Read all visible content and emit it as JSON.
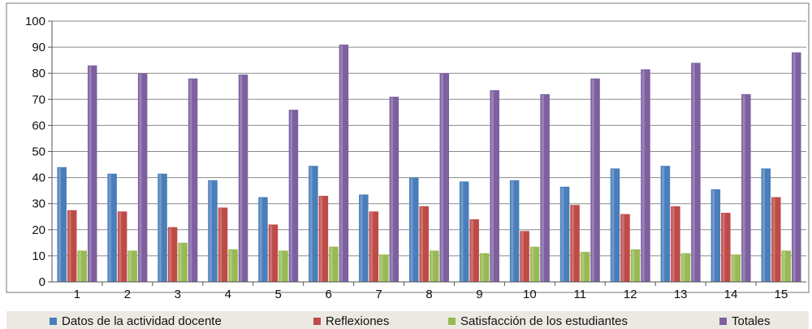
{
  "chart_data": {
    "type": "bar",
    "title": "",
    "xlabel": "",
    "ylabel": "",
    "ylim": [
      0,
      100
    ],
    "yticks": [
      "0",
      "10",
      "20",
      "30",
      "40",
      "50",
      "60",
      "70",
      "80",
      "90",
      "100"
    ],
    "categories": [
      "1",
      "2",
      "3",
      "4",
      "5",
      "6",
      "7",
      "8",
      "9",
      "10",
      "11",
      "12",
      "13",
      "14",
      "15"
    ],
    "grid": "horizontal",
    "legend_position": "bottom",
    "series": [
      {
        "name": "Datos de la actividad docente",
        "color": "#4a7ebb",
        "values": [
          44,
          41.5,
          41.5,
          39,
          32.5,
          44.5,
          33.5,
          40,
          38.5,
          39,
          36.5,
          43.5,
          44.5,
          35.5,
          43.5
        ]
      },
      {
        "name": "Reflexiones",
        "color": "#be4b48",
        "values": [
          27.5,
          27,
          21,
          28.5,
          22,
          33,
          27,
          29,
          24,
          19.5,
          29.5,
          26,
          29,
          26.5,
          32.5
        ]
      },
      {
        "name": "Satisfacción de los estudiantes",
        "color": "#98b954",
        "values": [
          12,
          12,
          15,
          12.5,
          12,
          13.5,
          10.5,
          12,
          11,
          13.5,
          11.5,
          12.5,
          11,
          10.5,
          12
        ]
      },
      {
        "name": "Totales",
        "color": "#7d60a0",
        "values": [
          83,
          80,
          78,
          79.5,
          66,
          91,
          71,
          80,
          73.5,
          72,
          78,
          81.5,
          84,
          72,
          88
        ]
      }
    ]
  }
}
